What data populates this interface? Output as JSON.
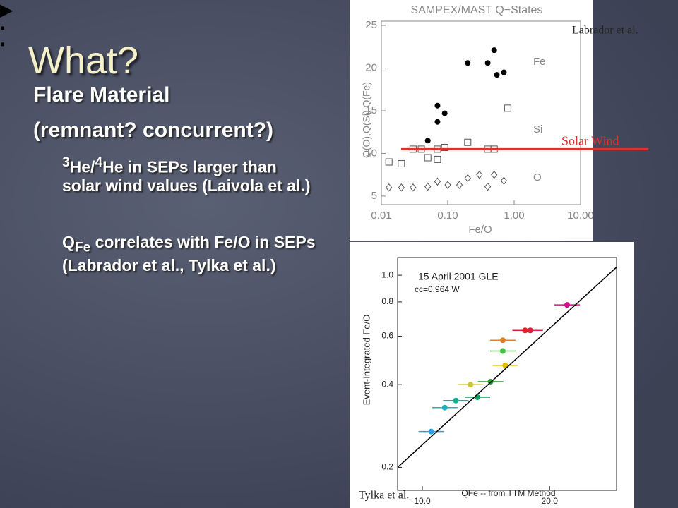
{
  "title": "What?",
  "bullets": [
    {
      "level": 1,
      "parts": [
        {
          "text": "Flare Material"
        }
      ]
    },
    {
      "level": 0,
      "parts": [
        {
          "text": "(remnant? concurrent?)"
        }
      ]
    },
    {
      "level": 2,
      "parts": [
        {
          "sup": "3"
        },
        {
          "text": "He/"
        },
        {
          "sup": "4"
        },
        {
          "text": "He in SEPs larger than solar wind values (Laivola et al.)"
        }
      ]
    },
    {
      "level": 2,
      "parts": [
        {
          "text": "Q"
        },
        {
          "sub": "Fe"
        },
        {
          "text": " correlates with Fe/O in SEPs (Labrador et al., Tylka et al.)"
        }
      ]
    }
  ],
  "figures": [
    {
      "type": "scatter",
      "title": "SAMPEX/MAST Q−States",
      "x_label": "Fe/O",
      "y_label": "Q(O),Q(Si),Q(Fe)",
      "credit": "Labrador et al.",
      "xlog": true,
      "ylog": false,
      "xlim": [
        0.01,
        10
      ],
      "ylim": [
        4,
        25.5
      ],
      "xticks": [
        {
          "value": 0.01,
          "label": "0.01"
        },
        {
          "value": 0.1,
          "label": "0.10"
        },
        {
          "value": 1,
          "label": "1.00"
        },
        {
          "value": 10,
          "label": "10.00"
        }
      ],
      "yticks": [
        5,
        10,
        15,
        20,
        25
      ],
      "series": [
        {
          "name": "Fe",
          "marker": "circle",
          "color": "#000000",
          "x": [
            0.05,
            0.07,
            0.07,
            0.09,
            0.2,
            0.4,
            0.5,
            0.55,
            0.7
          ],
          "values": [
            11.5,
            13.7,
            15.6,
            14.7,
            20.6,
            20.6,
            22.1,
            19.2,
            19.5
          ]
        },
        {
          "name": "Si",
          "marker": "square",
          "color": "#555555",
          "x": [
            0.013,
            0.02,
            0.03,
            0.04,
            0.05,
            0.07,
            0.09,
            0.07,
            0.2,
            0.4,
            0.5,
            0.8
          ],
          "values": [
            9,
            8.8,
            10.5,
            10.5,
            9.5,
            10.5,
            10.7,
            9.3,
            11.3,
            10.5,
            10.5,
            15.3
          ]
        },
        {
          "name": "O",
          "marker": "diamond",
          "color": "#555555",
          "x": [
            0.013,
            0.02,
            0.03,
            0.05,
            0.07,
            0.1,
            0.15,
            0.2,
            0.3,
            0.4,
            0.5,
            0.7
          ],
          "values": [
            6,
            6,
            6,
            6.1,
            6.7,
            6.3,
            6.3,
            7.1,
            7.5,
            6.1,
            7.5,
            6.8
          ]
        }
      ],
      "reference_line": {
        "label": "Solar Wind",
        "value": 10.5,
        "color": "#e03030"
      }
    },
    {
      "type": "scatter",
      "title": "15 April 2001 GLE",
      "subtitle": "cc=0.964 W",
      "x_label": "QFe -- from TTM Method",
      "y_label": "Event-Integrated Fe/O",
      "credit": "Tylka et al.",
      "xlog": true,
      "ylog": true,
      "xlim": [
        8.74,
        28.8
      ],
      "ylim": [
        0.165,
        1.16
      ],
      "xticks": [
        {
          "value": 10,
          "label": "10.0"
        },
        {
          "value": 20,
          "label": "20.0"
        }
      ],
      "yticks": [
        0.2,
        0.4,
        0.6,
        0.8,
        {
          "value": 1,
          "label": "1.0"
        }
      ],
      "series": [
        {
          "marker": "circle",
          "color": "#1e90ff",
          "x": [
            10.5,
            11.3,
            12,
            13.5,
            13,
            14.5,
            15.7,
            15.5,
            15.5,
            17.5,
            18,
            22
          ],
          "values": [
            0.27,
            0.33,
            0.35,
            0.36,
            0.4,
            0.41,
            0.47,
            0.53,
            0.58,
            0.63,
            0.63,
            0.78
          ],
          "colors": [
            "#2aa0e0",
            "#20b0c0",
            "#10b090",
            "#10a060",
            "#c8c830",
            "#20a020",
            "#e0c000",
            "#40c040",
            "#e08020",
            "#e02020",
            "#e02040",
            "#d0108a"
          ]
        }
      ],
      "fit": {
        "x": [
          8.74,
          28.8
        ],
        "values": [
          0.2,
          1.07
        ]
      }
    }
  ]
}
